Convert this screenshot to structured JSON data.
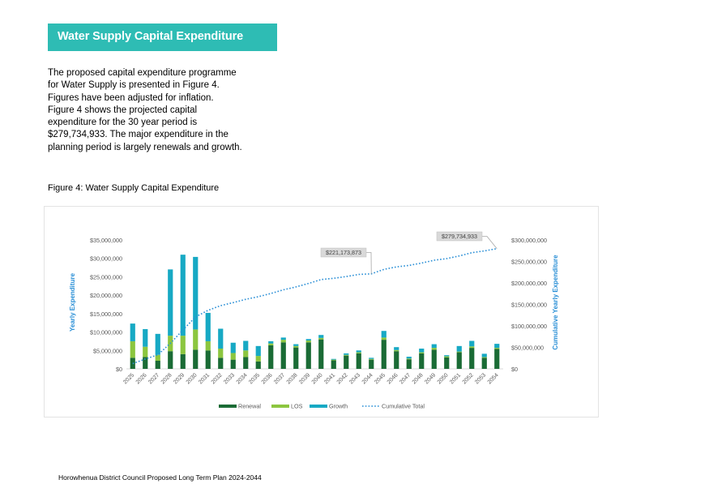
{
  "banner": {
    "title": "Water Supply Capital Expenditure"
  },
  "intro": {
    "paragraph": "The proposed capital expenditure programme for Water Supply is presented in Figure 4. Figures have been adjusted for inflation. Figure 4 shows the projected capital expenditure for the 30 year period is $279,734,933. The major expenditure in the planning period is largely renewals and growth."
  },
  "figure": {
    "caption": "Figure 4: Water Supply Capital Expenditure"
  },
  "footer": {
    "text": "Horowhenua District Council Proposed Long Term Plan 2024-2044"
  },
  "colors": {
    "banner": "#2ebcb4",
    "renewal": "#1a6b35",
    "los": "#8cc63f",
    "growth": "#17a9c4",
    "cumulative": "#2a8fd6"
  },
  "chart_data": {
    "type": "bar",
    "stacked": true,
    "categories": [
      "2025",
      "2026",
      "2027",
      "2028",
      "2029",
      "2030",
      "2031",
      "2032",
      "2033",
      "2034",
      "2035",
      "2036",
      "2037",
      "2038",
      "2039",
      "2040",
      "2041",
      "2042",
      "2043",
      "2044",
      "2045",
      "2046",
      "2047",
      "2048",
      "2049",
      "2050",
      "2051",
      "2052",
      "2053",
      "2054"
    ],
    "series": [
      {
        "name": "Renewal",
        "values": [
          3000000,
          3200000,
          2200000,
          4800000,
          4000000,
          5200000,
          5000000,
          3000000,
          2500000,
          3200000,
          2000000,
          6400000,
          7200000,
          5800000,
          7200000,
          8000000,
          2300000,
          3600000,
          4200000,
          2500000,
          7900000,
          4800000,
          2600000,
          4200000,
          5200000,
          3100000,
          4500000,
          5700000,
          3000000,
          5400000
        ]
      },
      {
        "name": "LOS",
        "values": [
          4500000,
          2800000,
          1600000,
          4200000,
          5000000,
          5500000,
          2500000,
          2500000,
          1800000,
          1800000,
          1500000,
          500000,
          700000,
          400000,
          500000,
          400000,
          200000,
          200000,
          300000,
          200000,
          600000,
          300000,
          200000,
          300000,
          500000,
          300000,
          200000,
          400000,
          200000,
          300000
        ]
      },
      {
        "name": "Growth",
        "values": [
          4800000,
          4800000,
          5700000,
          18000000,
          22000000,
          19700000,
          7700000,
          5400000,
          2800000,
          2600000,
          2700000,
          600000,
          600000,
          500000,
          400000,
          800000,
          200000,
          400000,
          500000,
          300000,
          1800000,
          800000,
          500000,
          1000000,
          1000000,
          300000,
          1500000,
          1500000,
          900000,
          1100000
        ]
      },
      {
        "name": "Cumulative Total",
        "values": [
          12300000,
          23100000,
          32600000,
          59600000,
          90600000,
          121000000,
          136200000,
          147100000,
          154200000,
          161800000,
          168000000,
          175500000,
          184000000,
          190700000,
          198800000,
          208000000,
          210700000,
          214900000,
          219900000,
          221173873,
          231473873,
          237373873,
          240673873,
          246173873,
          252873873,
          256573873,
          262773873,
          270373873,
          274473873,
          279734933
        ],
        "axis": "right",
        "style": "dotted-line"
      }
    ],
    "y_left": {
      "label": "Yearly Expenditure",
      "range": [
        0,
        35000000
      ],
      "ticks": [
        "$0",
        "$5,000,000",
        "$10,000,000",
        "$15,000,000",
        "$20,000,000",
        "$25,000,000",
        "$30,000,000",
        "$35,000,000"
      ]
    },
    "y_right": {
      "label": "Cumulative Yearly Expenditure",
      "range": [
        0,
        300000000
      ],
      "ticks": [
        "$0",
        "$50,000,000",
        "$100,000,000",
        "$150,000,000",
        "$200,000,000",
        "$250,000,000",
        "$300,000,000"
      ]
    },
    "annotations": [
      {
        "text": "$221,173,873",
        "category": "2044"
      },
      {
        "text": "$279,734,933",
        "category": "2054"
      }
    ],
    "legend": {
      "position": "bottom",
      "entries": [
        "Renewal",
        "LOS",
        "Growth",
        "Cumulative Total"
      ]
    },
    "grid": false
  }
}
